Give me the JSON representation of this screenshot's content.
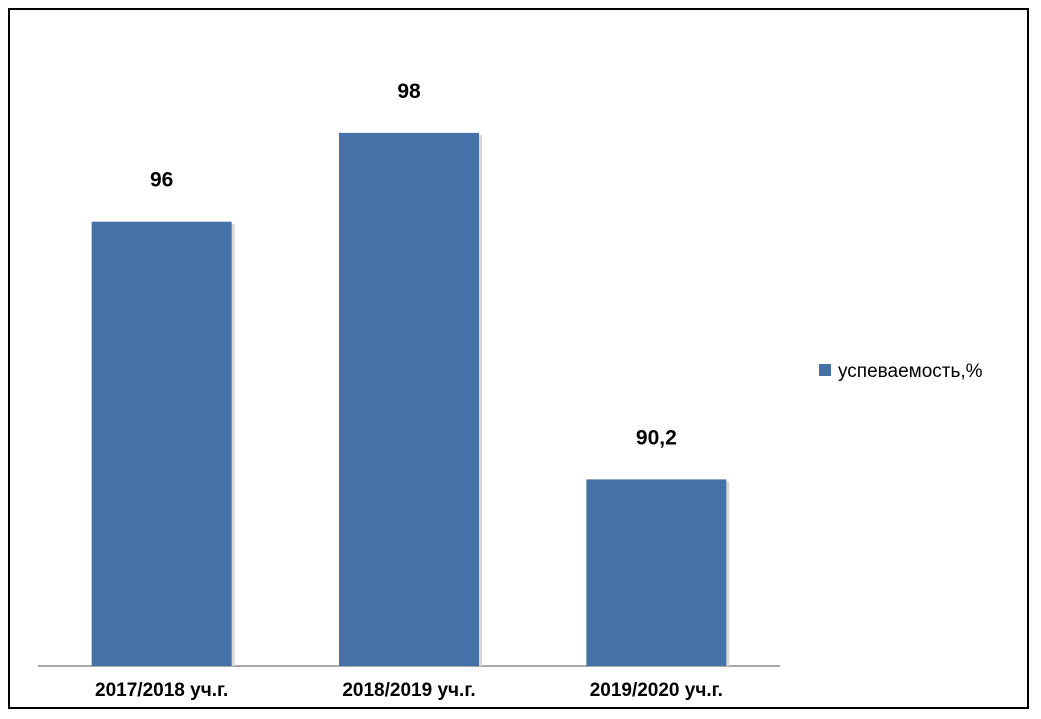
{
  "chart_data": {
    "type": "bar",
    "categories": [
      "2017/2018 уч.г.",
      "2018/2019 уч.г.",
      "2019/2020 уч.г."
    ],
    "series": [
      {
        "name": "успеваемость,%",
        "values": [
          96,
          98,
          90.2
        ],
        "value_labels": [
          "96",
          "98",
          "90,2"
        ],
        "color": "#4472A8"
      }
    ],
    "title": "",
    "xlabel": "",
    "ylabel": "",
    "ylim": [
      86,
      100
    ],
    "grid": false,
    "legend_position": "right"
  }
}
